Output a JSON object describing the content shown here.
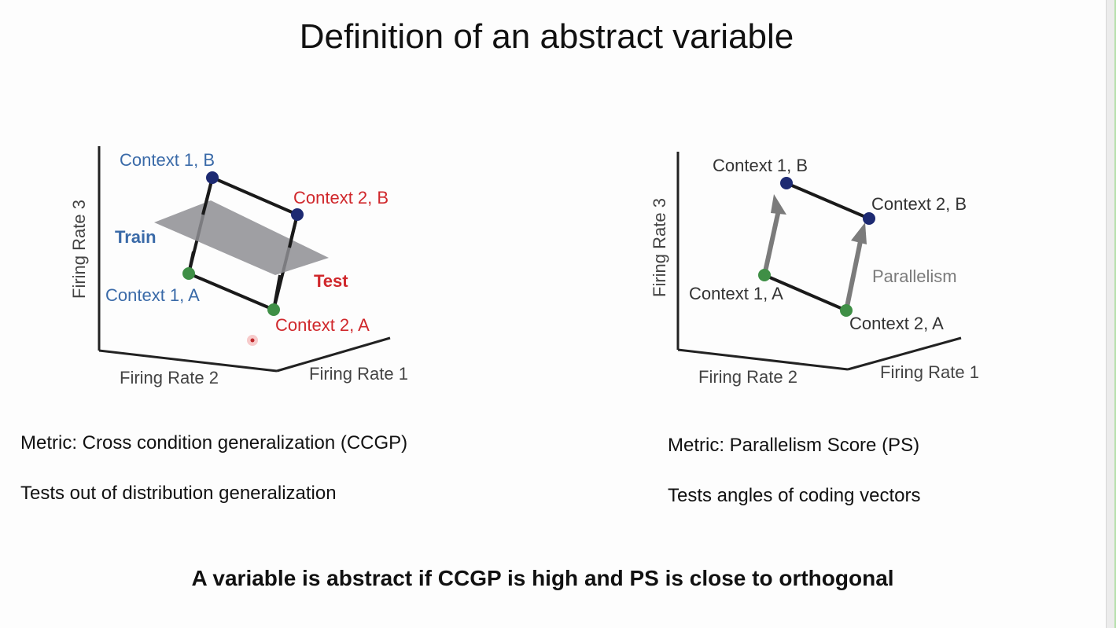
{
  "title": "Definition of an abstract variable",
  "left_diagram": {
    "axis_labels": {
      "x": "Firing Rate 2",
      "y": "Firing Rate 1",
      "z": "Firing Rate 3"
    },
    "points": {
      "c1b": "Context 1, B",
      "c2b": "Context 2, B",
      "c1a": "Context 1, A",
      "c2a": "Context 2, A"
    },
    "train_label": "Train",
    "test_label": "Test",
    "metric": "Metric: Cross condition generalization (CCGP)",
    "description": "Tests out of distribution generalization"
  },
  "right_diagram": {
    "axis_labels": {
      "x": "Firing Rate 2",
      "y": "Firing Rate 1",
      "z": "Firing Rate 3"
    },
    "points": {
      "c1b": "Context 1, B",
      "c2b": "Context 2, B",
      "c1a": "Context 1, A",
      "c2a": "Context 2, A"
    },
    "parallelism_label": "Parallelism",
    "metric": "Metric: Parallelism Score (PS)",
    "description": "Tests angles of coding vectors"
  },
  "conclusion": "A variable is abstract if CCGP is high and PS is close to orthogonal",
  "colors": {
    "blue_label": "#3a6aa8",
    "red_label": "#d0282c",
    "point_dark": "#1d2a72",
    "point_green": "#3f8f46",
    "plane_gray": "#8e8e93",
    "arrow_gray": "#7b7b7b"
  }
}
